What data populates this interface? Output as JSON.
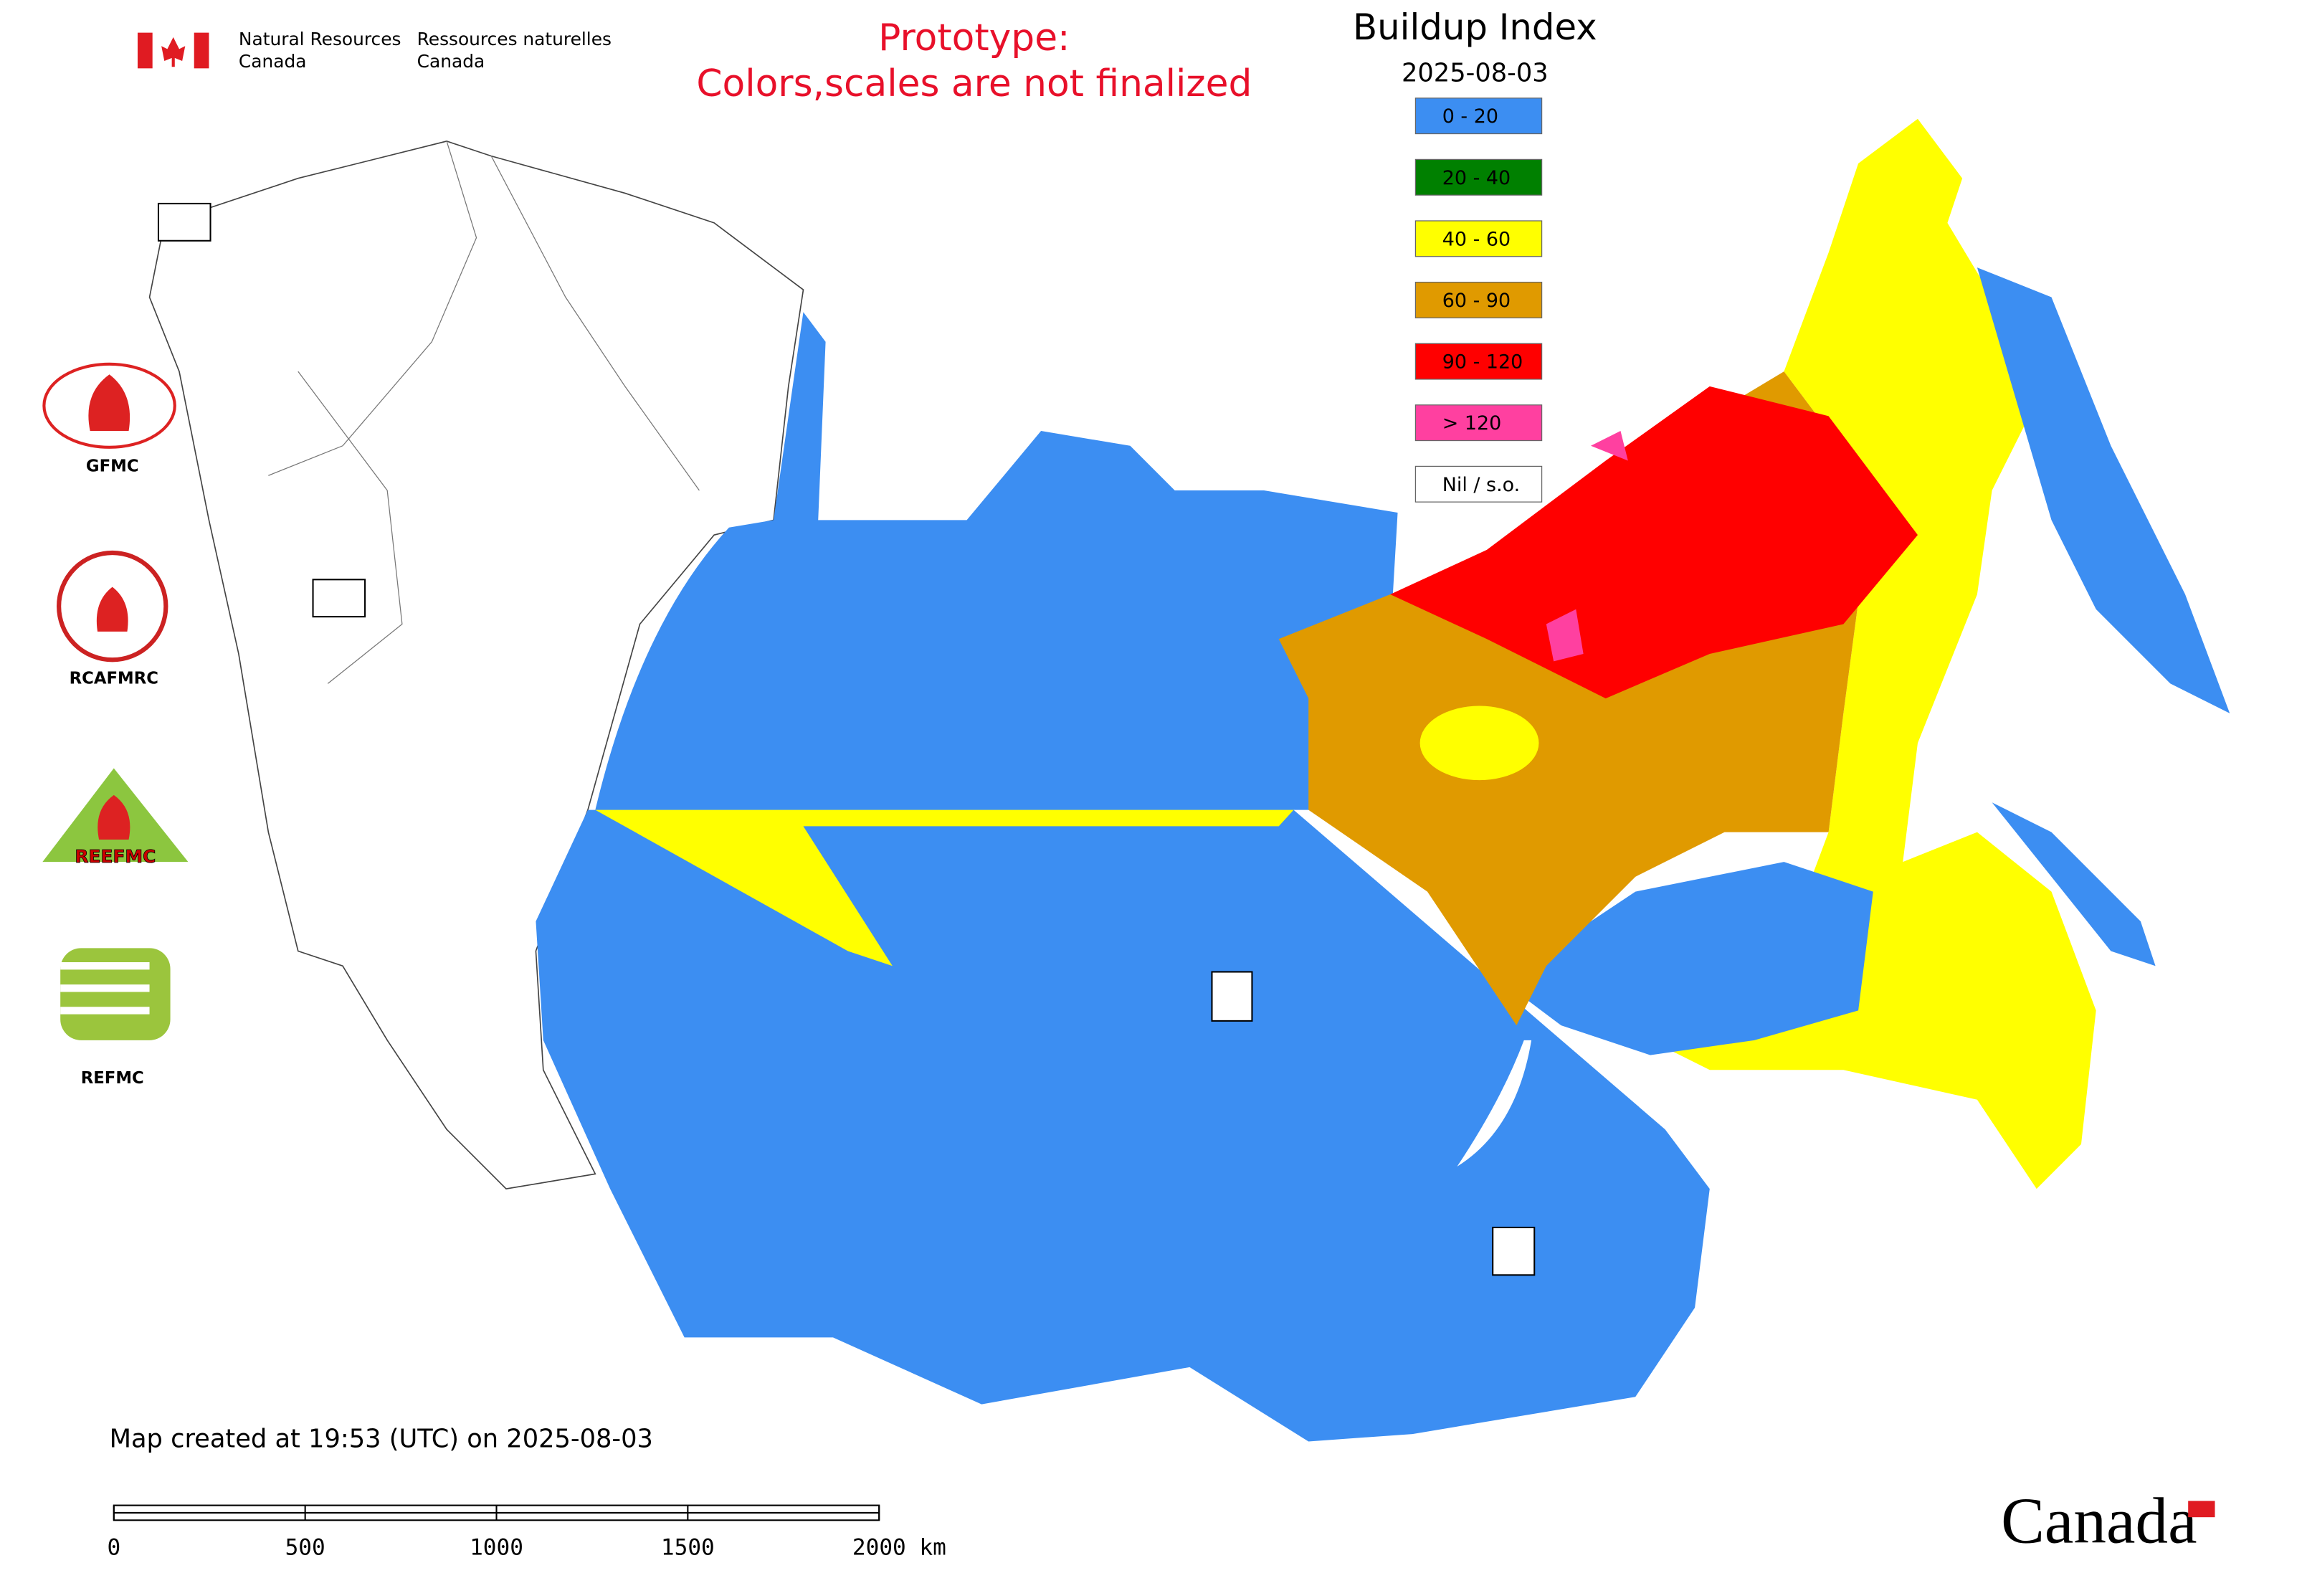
{
  "header": {
    "agency_en": [
      "Natural Resources",
      "Canada"
    ],
    "agency_fr": [
      "Ressources naturelles",
      "Canada"
    ],
    "notice": [
      "Prototype:",
      "Colors,scales are not finalized"
    ]
  },
  "legend": {
    "title": "Buildup Index",
    "date": "2025-08-03",
    "items": [
      {
        "label": "0 - 20",
        "color": "#3c8ef2"
      },
      {
        "label": "20 - 40",
        "color": "#008000"
      },
      {
        "label": "40 - 60",
        "color": "#ffff00"
      },
      {
        "label": "60 - 90",
        "color": "#e09a00"
      },
      {
        "label": "90 - 120",
        "color": "#ff0000"
      },
      {
        "label": "> 120",
        "color": "#ff40a0"
      },
      {
        "label": "Nil / s.o.",
        "color": "#ffffff"
      }
    ]
  },
  "logos": [
    "GFMC",
    "RCAFMRC",
    "REEFMC",
    "REFMC"
  ],
  "footer": {
    "created": "Map created at 19:53 (UTC) on 2025-08-03",
    "scale_labels": [
      "0",
      "500",
      "1000",
      "1500",
      "2000 km"
    ],
    "wordmark": "Canada"
  }
}
